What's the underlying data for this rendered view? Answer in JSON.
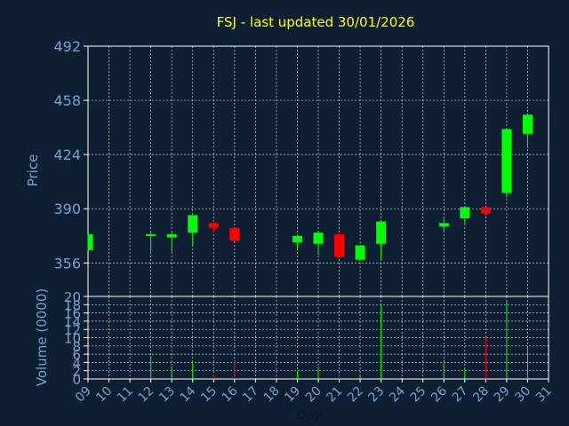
{
  "chart_data": {
    "type": "candlestick",
    "title": "FSJ - last updated 30/01/2026",
    "ylabel": "Price",
    "volume_label": "Volume (0000)",
    "xlabel": "Day",
    "x_ticks": [
      "09",
      "10",
      "11",
      "12",
      "13",
      "14",
      "15",
      "16",
      "17",
      "18",
      "19",
      "20",
      "21",
      "22",
      "23",
      "24",
      "25",
      "26",
      "27",
      "28",
      "29",
      "30",
      "31"
    ],
    "y_ticks": [
      356,
      390,
      424,
      458,
      492
    ],
    "ylim": [
      335,
      492
    ],
    "volume_ticks": [
      0,
      2,
      4,
      6,
      8,
      10,
      12,
      14,
      16,
      18,
      20
    ],
    "volume_ylim": [
      0,
      20
    ],
    "grid": true,
    "up_color": "#00ff00",
    "down_color": "#ff0000",
    "candles": [
      {
        "day": "09",
        "open": 364,
        "high": 374,
        "low": 364,
        "close": 374,
        "volume": 0
      },
      {
        "day": "12",
        "open": 373,
        "high": 375,
        "low": 363,
        "close": 374,
        "volume": 5.5
      },
      {
        "day": "13",
        "open": 372,
        "high": 375,
        "low": 363,
        "close": 374,
        "volume": 3
      },
      {
        "day": "14",
        "open": 375,
        "high": 386,
        "low": 367,
        "close": 386,
        "volume": 4
      },
      {
        "day": "15",
        "open": 381,
        "high": 382,
        "low": 375,
        "close": 378,
        "volume": 1
      },
      {
        "day": "16",
        "open": 378,
        "high": 378,
        "low": 370,
        "close": 370,
        "volume": 4.5
      },
      {
        "day": "19",
        "open": 369,
        "high": 373,
        "low": 365,
        "close": 373,
        "volume": 2
      },
      {
        "day": "20",
        "open": 368,
        "high": 376,
        "low": 361,
        "close": 375,
        "volume": 3
      },
      {
        "day": "21",
        "open": 374,
        "high": 374,
        "low": 360,
        "close": 360,
        "volume": 1.5
      },
      {
        "day": "22",
        "open": 358,
        "high": 367,
        "low": 357,
        "close": 367,
        "volume": 1
      },
      {
        "day": "23",
        "open": 368,
        "high": 382,
        "low": 358,
        "close": 382,
        "volume": 18
      },
      {
        "day": "26",
        "open": 379,
        "high": 384,
        "low": 376,
        "close": 381,
        "volume": 4.5
      },
      {
        "day": "27",
        "open": 384,
        "high": 391,
        "low": 380,
        "close": 391,
        "volume": 2.5
      },
      {
        "day": "28",
        "open": 391,
        "high": 391,
        "low": 387,
        "close": 387,
        "volume": 10
      },
      {
        "day": "29",
        "open": 400,
        "high": 440,
        "low": 397,
        "close": 440,
        "volume": 19
      },
      {
        "day": "30",
        "open": 437,
        "high": 450,
        "low": 428,
        "close": 449,
        "volume": 8
      }
    ]
  }
}
